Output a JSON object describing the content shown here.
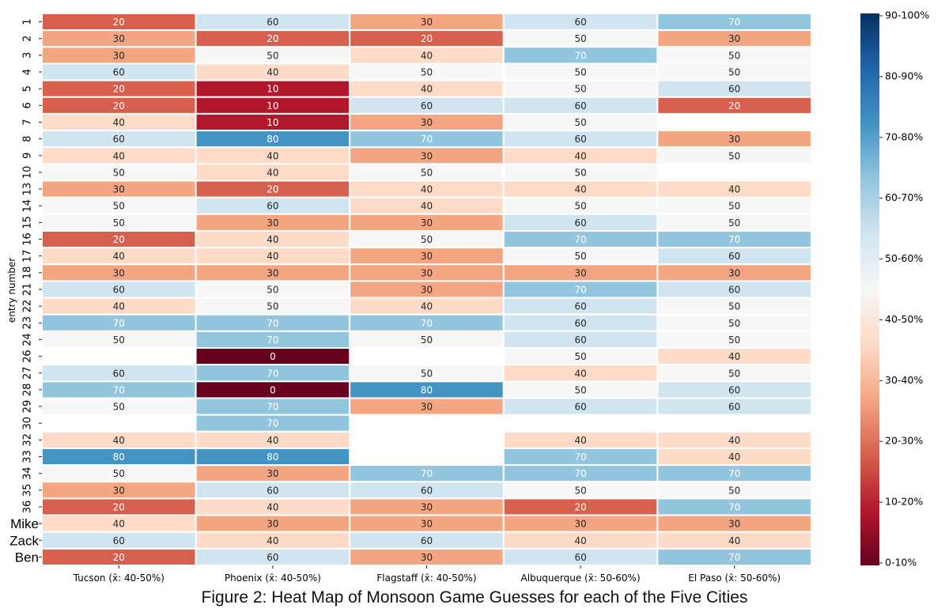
{
  "chart_data": {
    "type": "heatmap",
    "title": "Figure 2: Heat Map of Monsoon Game Guesses for each of the Five Cities",
    "ylabel": "entry number",
    "columns": [
      "Tucson (x̄: 40-50%)",
      "Phoenix (x̄: 40-50%)",
      "Flagstaff (x̄: 40-50%)",
      "Albuquerque (x̄: 50-60%)",
      "El Paso (x̄: 50-60%)"
    ],
    "rows": [
      "1",
      "2",
      "3",
      "4",
      "5",
      "6",
      "7",
      "8",
      "9",
      "10",
      "13",
      "14",
      "15",
      "16",
      "17",
      "18",
      "21",
      "22",
      "23",
      "24",
      "26",
      "27",
      "28",
      "29",
      "30",
      "32",
      "33",
      "34",
      "35",
      "36",
      "Mike",
      "Zack",
      "Ben"
    ],
    "values": [
      [
        20,
        60,
        30,
        60,
        70
      ],
      [
        30,
        20,
        20,
        50,
        30
      ],
      [
        30,
        50,
        40,
        70,
        50
      ],
      [
        60,
        40,
        50,
        50,
        50
      ],
      [
        20,
        10,
        40,
        50,
        60
      ],
      [
        20,
        10,
        60,
        60,
        20
      ],
      [
        40,
        10,
        30,
        50,
        null
      ],
      [
        60,
        80,
        70,
        60,
        30
      ],
      [
        40,
        40,
        30,
        40,
        50
      ],
      [
        50,
        40,
        50,
        50,
        null
      ],
      [
        30,
        20,
        40,
        40,
        40
      ],
      [
        50,
        60,
        40,
        50,
        50
      ],
      [
        50,
        30,
        30,
        60,
        50
      ],
      [
        20,
        40,
        50,
        70,
        70
      ],
      [
        40,
        40,
        30,
        50,
        60
      ],
      [
        30,
        30,
        30,
        30,
        30
      ],
      [
        60,
        50,
        30,
        70,
        60
      ],
      [
        40,
        50,
        40,
        60,
        50
      ],
      [
        70,
        70,
        70,
        60,
        50
      ],
      [
        50,
        70,
        50,
        60,
        50
      ],
      [
        null,
        0,
        null,
        50,
        40
      ],
      [
        60,
        70,
        50,
        40,
        50
      ],
      [
        70,
        0,
        80,
        50,
        60
      ],
      [
        50,
        70,
        30,
        60,
        60
      ],
      [
        null,
        70,
        null,
        null,
        null
      ],
      [
        40,
        40,
        null,
        40,
        40
      ],
      [
        80,
        80,
        null,
        70,
        40
      ],
      [
        50,
        30,
        70,
        70,
        70
      ],
      [
        30,
        60,
        60,
        50,
        50
      ],
      [
        20,
        40,
        30,
        20,
        70
      ],
      [
        40,
        30,
        30,
        30,
        30
      ],
      [
        60,
        40,
        60,
        40,
        40
      ],
      [
        20,
        60,
        30,
        60,
        70
      ]
    ],
    "value_range": [
      0,
      100
    ],
    "colormap": "RdBu",
    "colorbar_labels": [
      "0-10%",
      "10-20%",
      "20-30%",
      "30-40%",
      "40-50%",
      "50-60%",
      "60-70%",
      "70-80%",
      "80-90%",
      "90-100%"
    ],
    "row_label_style": {
      "large": [
        "Mike",
        "Zack",
        "Ben"
      ]
    }
  }
}
